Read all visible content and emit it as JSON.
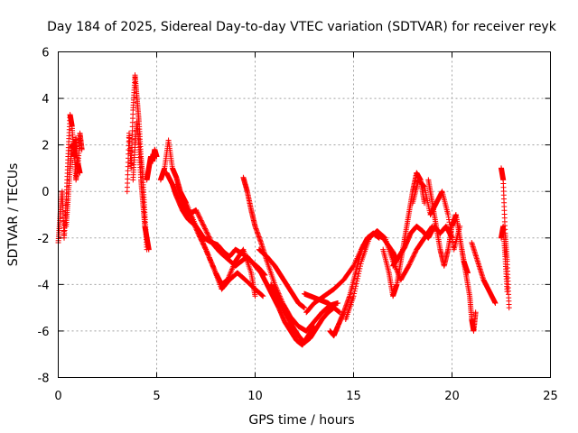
{
  "colors": {
    "series": "#ff0000",
    "axis": "#000000",
    "grid": "#a0a0a0",
    "background": "#ffffff"
  },
  "chart_data": {
    "type": "scatter",
    "title": "Day 184 of 2025, Sidereal Day-to-day VTEC variation (SDTVAR) for receiver reyk",
    "xlabel": "GPS time / hours",
    "ylabel": "SDTVAR / TECUs",
    "xlim": [
      0,
      25
    ],
    "ylim": [
      -8,
      6
    ],
    "xticks": [
      0,
      5,
      10,
      15,
      20,
      25
    ],
    "yticks": [
      -8,
      -6,
      -4,
      -2,
      0,
      2,
      4,
      6
    ],
    "grid": true,
    "marker": "+",
    "series": [
      {
        "name": "SDTVAR",
        "tracks": [
          {
            "x": [
              0.0,
              0.1,
              0.2,
              0.3,
              0.4,
              0.5,
              0.6,
              0.7,
              0.8,
              0.9,
              1.0,
              1.1,
              1.2
            ],
            "y": [
              -2.2,
              -1.0,
              0.0,
              -2.0,
              -0.5,
              1.5,
              3.3,
              2.8,
              1.5,
              2.3,
              1.0,
              2.5,
              1.8
            ]
          },
          {
            "x": [
              0.4,
              0.5,
              0.6,
              0.7,
              0.8,
              0.9,
              1.0,
              1.1
            ],
            "y": [
              -1.5,
              -0.3,
              1.0,
              2.0,
              1.8,
              0.5,
              1.2,
              0.8
            ]
          },
          {
            "x": [
              3.5,
              3.6,
              3.7,
              3.8,
              3.9,
              4.0,
              4.1,
              4.2,
              4.3,
              4.4,
              4.5
            ],
            "y": [
              0.0,
              2.5,
              1.0,
              3.5,
              5.0,
              4.0,
              3.0,
              1.5,
              0.5,
              -1.0,
              -2.5
            ]
          },
          {
            "x": [
              3.8,
              3.9,
              4.0,
              4.1,
              4.2,
              4.3,
              4.4,
              4.5,
              4.6
            ],
            "y": [
              0.5,
              2.0,
              3.0,
              2.0,
              0.5,
              -0.5,
              -1.5,
              -2.0,
              -2.5
            ]
          },
          {
            "x": [
              4.5,
              4.6,
              4.7,
              4.8,
              4.9,
              5.0
            ],
            "y": [
              0.5,
              1.0,
              1.5,
              1.3,
              1.8,
              1.5
            ]
          },
          {
            "x": [
              5.2,
              5.4,
              5.6,
              5.8,
              6.0,
              6.2,
              6.5,
              7.0,
              7.5,
              8.0,
              8.3,
              8.6,
              9.0,
              9.4,
              9.8,
              10.0
            ],
            "y": [
              0.5,
              1.0,
              2.2,
              1.0,
              0.6,
              0.0,
              -0.5,
              -1.5,
              -2.5,
              -3.5,
              -4.0,
              -3.8,
              -3.0,
              -2.5,
              -3.5,
              -4.5
            ]
          },
          {
            "x": [
              5.5,
              5.8,
              6.0,
              6.3,
              6.6,
              7.0,
              7.4,
              7.8,
              8.2,
              8.6,
              9.0,
              9.3,
              9.6,
              10.0,
              10.3
            ],
            "y": [
              0.8,
              0.3,
              -0.2,
              -0.8,
              -1.2,
              -1.5,
              -2.0,
              -2.2,
              -2.6,
              -2.9,
              -3.2,
              -3.0,
              -2.8,
              -3.2,
              -3.5
            ]
          },
          {
            "x": [
              6.0,
              6.3,
              6.6,
              7.0,
              7.4,
              7.8,
              8.1,
              8.4,
              8.7,
              9.0,
              9.4,
              9.8,
              10.2,
              10.5
            ],
            "y": [
              0.3,
              -0.5,
              -1.0,
              -0.8,
              -1.5,
              -2.2,
              -2.3,
              -2.6,
              -2.8,
              -2.5,
              -2.7,
              -3.0,
              -3.3,
              -3.6
            ]
          },
          {
            "x": [
              6.3,
              6.7,
              7.1,
              7.5,
              7.9,
              8.3,
              8.7,
              9.1,
              9.5,
              10.0,
              10.4
            ],
            "y": [
              -0.3,
              -1.0,
              -1.8,
              -2.5,
              -3.3,
              -4.2,
              -3.8,
              -3.5,
              -3.8,
              -4.2,
              -4.5
            ]
          },
          {
            "x": [
              9.4,
              9.6,
              9.8,
              10.0,
              10.3,
              10.6,
              11.0,
              11.4,
              11.8,
              12.2,
              12.6,
              13.0,
              13.4,
              13.8,
              14.2
            ],
            "y": [
              0.6,
              0.0,
              -0.8,
              -1.5,
              -2.2,
              -3.0,
              -4.0,
              -4.8,
              -5.4,
              -5.8,
              -6.0,
              -5.6,
              -5.2,
              -4.9,
              -4.8
            ]
          },
          {
            "x": [
              10.3,
              10.6,
              10.9,
              11.2,
              11.5,
              11.8,
              12.1,
              12.4,
              12.7,
              13.0
            ],
            "y": [
              -3.5,
              -4.0,
              -4.5,
              -5.0,
              -5.6,
              -6.0,
              -6.4,
              -6.6,
              -6.2,
              -5.8
            ]
          },
          {
            "x": [
              10.8,
              11.0,
              11.3,
              11.6,
              11.9,
              12.2,
              12.5,
              12.8,
              13.1,
              13.4,
              13.7,
              14.0
            ],
            "y": [
              -4.0,
              -4.3,
              -4.8,
              -5.3,
              -5.8,
              -6.2,
              -6.5,
              -6.3,
              -5.9,
              -5.5,
              -5.2,
              -5.0
            ]
          },
          {
            "x": [
              10.2,
              10.6,
              11.0,
              11.3,
              11.6,
              11.9,
              12.2,
              12.5
            ],
            "y": [
              -2.5,
              -2.8,
              -3.2,
              -3.6,
              -4.0,
              -4.4,
              -4.8,
              -5.0
            ]
          },
          {
            "x": [
              12.5,
              12.8,
              13.1,
              13.4,
              13.7,
              14.0,
              14.3
            ],
            "y": [
              -4.4,
              -4.5,
              -4.6,
              -4.7,
              -4.8,
              -5.0,
              -5.2
            ]
          },
          {
            "x": [
              13.8,
              14.0,
              14.2,
              14.5,
              14.8,
              15.1,
              15.4,
              15.7,
              16.0,
              16.3
            ],
            "y": [
              -6.0,
              -6.2,
              -5.8,
              -5.2,
              -4.5,
              -3.5,
              -2.5,
              -2.0,
              -1.8,
              -2.0
            ]
          },
          {
            "x": [
              12.6,
              13.0,
              13.5,
              14.0,
              14.5,
              15.0,
              15.5,
              16.0,
              16.5,
              17.0,
              17.2
            ],
            "y": [
              -5.2,
              -4.8,
              -4.5,
              -4.2,
              -3.8,
              -3.2,
              -2.3,
              -1.8,
              -2.0,
              -2.6,
              -3.0
            ]
          },
          {
            "x": [
              14.6,
              15.0,
              15.4,
              15.8,
              16.2,
              16.6,
              17.0,
              17.4,
              17.8,
              18.2,
              18.6,
              19.0
            ],
            "y": [
              -5.5,
              -4.5,
              -3.0,
              -2.0,
              -1.7,
              -2.0,
              -3.0,
              -3.8,
              -3.2,
              -2.5,
              -2.0,
              -1.5
            ]
          },
          {
            "x": [
              16.5,
              16.8,
              17.0,
              17.2,
              17.4,
              17.6,
              17.8,
              18.0,
              18.2,
              18.4,
              18.6
            ],
            "y": [
              -2.5,
              -3.5,
              -4.5,
              -4.0,
              -3.0,
              -2.0,
              -1.0,
              0.0,
              0.8,
              0.5,
              -0.5
            ]
          },
          {
            "x": [
              17.0,
              17.3,
              17.6,
              17.9,
              18.2,
              18.5,
              18.8,
              19.1,
              19.4,
              19.7,
              20.0
            ],
            "y": [
              -3.2,
              -2.8,
              -2.4,
              -1.8,
              -1.5,
              -1.7,
              -2.0,
              -1.5,
              -1.8,
              -1.5,
              -2.0
            ]
          },
          {
            "x": [
              18.0,
              18.3,
              18.6,
              18.9,
              19.2,
              19.5,
              19.8,
              20.1,
              20.4
            ],
            "y": [
              -0.5,
              0.5,
              0.2,
              -1.0,
              -0.5,
              0.0,
              -1.0,
              -2.5,
              -1.5
            ]
          },
          {
            "x": [
              18.8,
              19.0,
              19.2,
              19.4,
              19.6,
              19.8,
              20.0,
              20.2,
              20.4,
              20.6,
              20.8
            ],
            "y": [
              0.5,
              -0.5,
              -1.5,
              -2.5,
              -3.2,
              -2.5,
              -1.5,
              -1.0,
              -2.0,
              -3.0,
              -3.5
            ]
          },
          {
            "x": [
              20.5,
              20.7,
              20.9,
              21.0,
              21.1,
              21.2
            ],
            "y": [
              -2.5,
              -3.5,
              -4.5,
              -5.5,
              -6.0,
              -5.2
            ]
          },
          {
            "x": [
              21.0,
              21.3,
              21.6,
              21.9,
              22.2
            ],
            "y": [
              -2.2,
              -3.0,
              -3.8,
              -4.3,
              -4.8
            ]
          },
          {
            "x": [
              22.5,
              22.6,
              22.7,
              22.8,
              22.9
            ],
            "y": [
              1.0,
              0.5,
              -1.8,
              -3.0,
              -5.0
            ]
          },
          {
            "x": [
              22.5,
              22.6,
              22.7,
              22.8
            ],
            "y": [
              -2.0,
              -1.5,
              -2.8,
              -4.3
            ]
          }
        ]
      }
    ]
  }
}
